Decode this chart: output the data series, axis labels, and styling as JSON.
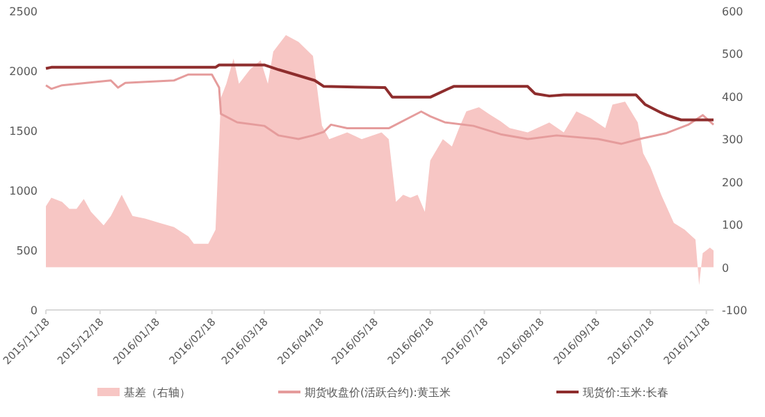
{
  "chart_data": {
    "type": "line",
    "legend": "bottom",
    "xlim": [
      "2015-11-18",
      "2016-11-22"
    ],
    "xticks": [
      {
        "value": "2015-11-18",
        "label": "2015/11/18"
      },
      {
        "value": "2015-12-18",
        "label": "2015/12/18"
      },
      {
        "value": "2016-01-18",
        "label": "2016/01/18"
      },
      {
        "value": "2016-02-18",
        "label": "2016/02/18"
      },
      {
        "value": "2016-03-18",
        "label": "2016/03/18"
      },
      {
        "value": "2016-04-18",
        "label": "2016/04/18"
      },
      {
        "value": "2016-05-18",
        "label": "2016/05/18"
      },
      {
        "value": "2016-06-18",
        "label": "2016/06/18"
      },
      {
        "value": "2016-07-18",
        "label": "2016/07/18"
      },
      {
        "value": "2016-08-18",
        "label": "2016/08/18"
      },
      {
        "value": "2016-09-18",
        "label": "2016/09/18"
      },
      {
        "value": "2016-10-18",
        "label": "2016/10/18"
      },
      {
        "value": "2016-11-18",
        "label": "2016/11/18"
      }
    ],
    "ylim": [
      0,
      2500
    ],
    "yticks": [
      0,
      500,
      1000,
      1500,
      2000,
      2500
    ],
    "y2lim": [
      -100,
      600
    ],
    "y2ticks": [
      -100,
      0,
      100,
      200,
      300,
      400,
      500,
      600
    ],
    "series": [
      {
        "name": "基差（右轴）",
        "type": "area",
        "axis": "y2",
        "color": "#f7c6c4",
        "x": [
          "2015-11-18",
          "2015-11-21",
          "2015-11-27",
          "2015-12-01",
          "2015-12-05",
          "2015-12-09",
          "2015-12-13",
          "2015-12-20",
          "2015-12-24",
          "2015-12-30",
          "2016-01-05",
          "2016-01-12",
          "2016-01-20",
          "2016-01-28",
          "2016-02-05",
          "2016-02-08",
          "2016-02-16",
          "2016-02-20",
          "2016-02-23",
          "2016-02-26",
          "2016-03-01",
          "2016-03-04",
          "2016-03-10",
          "2016-03-16",
          "2016-03-20",
          "2016-03-23",
          "2016-03-30",
          "2016-04-06",
          "2016-04-14",
          "2016-04-19",
          "2016-04-23",
          "2016-05-03",
          "2016-05-11",
          "2016-05-22",
          "2016-05-26",
          "2016-05-30",
          "2016-06-03",
          "2016-06-07",
          "2016-06-11",
          "2016-06-15",
          "2016-06-18",
          "2016-06-25",
          "2016-06-30",
          "2016-07-04",
          "2016-07-08",
          "2016-07-15",
          "2016-07-21",
          "2016-07-27",
          "2016-08-01",
          "2016-08-11",
          "2016-08-23",
          "2016-08-31",
          "2016-09-07",
          "2016-09-15",
          "2016-09-23",
          "2016-09-27",
          "2016-10-04",
          "2016-10-11",
          "2016-10-14",
          "2016-10-18",
          "2016-10-24",
          "2016-10-31",
          "2016-11-06",
          "2016-11-12",
          "2016-11-14",
          "2016-11-16",
          "2016-11-20",
          "2016-11-22"
        ],
        "values": [
          143,
          163,
          153,
          137,
          137,
          160,
          130,
          98,
          120,
          170,
          120,
          114,
          104,
          94,
          72,
          55,
          55,
          88,
          397,
          430,
          489,
          430,
          463,
          485,
          430,
          505,
          544,
          528,
          495,
          332,
          300,
          316,
          300,
          316,
          300,
          153,
          170,
          163,
          170,
          130,
          250,
          300,
          283,
          326,
          365,
          375,
          358,
          342,
          326,
          316,
          339,
          316,
          365,
          349,
          326,
          381,
          388,
          339,
          267,
          235,
          170,
          104,
          88,
          65,
          -42,
          33,
          46,
          39
        ]
      },
      {
        "name": "期货收盘价(活跃合约):黄玉米",
        "color": "#e59c9c",
        "x": [
          "2015-11-18",
          "2015-11-21",
          "2015-11-27",
          "2015-12-24",
          "2015-12-28",
          "2016-01-01",
          "2016-01-28",
          "2016-02-05",
          "2016-02-18",
          "2016-02-22",
          "2016-02-23",
          "2016-03-03",
          "2016-03-18",
          "2016-03-26",
          "2016-04-06",
          "2016-04-14",
          "2016-04-20",
          "2016-04-24",
          "2016-05-03",
          "2016-05-26",
          "2016-06-13",
          "2016-06-18",
          "2016-06-26",
          "2016-07-12",
          "2016-07-27",
          "2016-08-11",
          "2016-08-27",
          "2016-09-19",
          "2016-10-02",
          "2016-10-12",
          "2016-10-27",
          "2016-11-08",
          "2016-11-16",
          "2016-11-22"
        ],
        "values": [
          1880,
          1850,
          1880,
          1920,
          1860,
          1900,
          1920,
          1970,
          1970,
          1860,
          1640,
          1570,
          1540,
          1460,
          1430,
          1460,
          1490,
          1550,
          1520,
          1520,
          1660,
          1620,
          1570,
          1540,
          1470,
          1430,
          1460,
          1430,
          1390,
          1430,
          1480,
          1550,
          1630,
          1550
        ]
      },
      {
        "name": "现货价:玉米:长春",
        "color": "#8e2d2d",
        "x": [
          "2015-11-18",
          "2015-11-21",
          "2016-02-20",
          "2016-02-22",
          "2016-03-18",
          "2016-03-26",
          "2016-04-15",
          "2016-04-20",
          "2016-05-24",
          "2016-05-28",
          "2016-06-18",
          "2016-06-28",
          "2016-07-01",
          "2016-08-11",
          "2016-08-15",
          "2016-08-23",
          "2016-08-31",
          "2016-10-10",
          "2016-10-15",
          "2016-10-24",
          "2016-10-27",
          "2016-11-04",
          "2016-11-22"
        ],
        "values": [
          2020,
          2030,
          2030,
          2050,
          2050,
          2010,
          1920,
          1870,
          1860,
          1780,
          1780,
          1850,
          1870,
          1870,
          1810,
          1790,
          1800,
          1800,
          1720,
          1650,
          1630,
          1590,
          1590
        ]
      }
    ]
  }
}
